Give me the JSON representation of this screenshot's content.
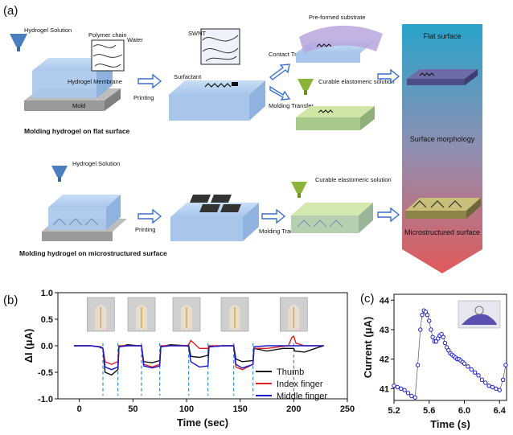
{
  "panel_a": {
    "label": "(a)",
    "row1": {
      "hydrogel_solution": "Hydrogel Solution",
      "polymer_chain": "Polymer chain",
      "water": "Water",
      "hydrogel_membrane": "Hydrogel Membrane",
      "mold": "Mold",
      "printing": "Printing",
      "swnt": "SWNT",
      "surfactant": "Surfactant",
      "preformed_substrate": "Pre-formed substrate",
      "contact_transfer": "Contact Transfer",
      "molding_transfer": "Molding Transfer",
      "curable_solution": "Curable elastomeric solution",
      "caption": "Molding hydrogel on flat surface"
    },
    "row2": {
      "hydrogel_solution": "Hydrogel Solution",
      "printing": "Printing",
      "molding_transfer": "Molding Transfer",
      "curable_solution": "Curable elastomeric solution",
      "caption": "Molding hydrogel on microstructured surface"
    },
    "gradient_bar": {
      "top": "Flat surface",
      "middle": "Surface morphology",
      "bottom": "Microstructured surface",
      "top_color": "#29a3c9",
      "bottom_color": "#e05a5a"
    }
  },
  "panel_b": {
    "label": "(b)",
    "photo_icons": [
      "hand-photo-thumb-icon",
      "hand-photo-index-icon",
      "hand-photo-middle-icon",
      "hand-photo-two-icon",
      "hand-photo-three-icon"
    ],
    "chart_data": {
      "type": "line",
      "title": "",
      "xlabel": "Time (sec)",
      "ylabel": "ΔI (μA)",
      "xlim": [
        -20,
        250
      ],
      "ylim": [
        -1.0,
        1.0
      ],
      "xticks": [
        "0",
        "50",
        "100",
        "150",
        "200",
        "250"
      ],
      "yticks": [
        "-1.0",
        "-0.5",
        "0.0",
        "0.5",
        "1.0"
      ],
      "legend_position": "bottom-right",
      "event_marks_sec": [
        22,
        36,
        58,
        75,
        102,
        120,
        144,
        162,
        200
      ],
      "series": [
        {
          "name": "Thumb",
          "color": "#111111",
          "x": [
            -5,
            10,
            18,
            22,
            24,
            30,
            36,
            37,
            45,
            55,
            58,
            60,
            68,
            75,
            76,
            85,
            100,
            102,
            104,
            112,
            120,
            121,
            135,
            144,
            146,
            152,
            162,
            163,
            175,
            190,
            200,
            201,
            210,
            220,
            228
          ],
          "y": [
            0,
            0,
            -0.02,
            -0.05,
            -0.5,
            -0.55,
            -0.45,
            -0.02,
            0.02,
            0,
            0,
            -0.3,
            -0.32,
            -0.28,
            -0.02,
            0.02,
            0,
            0,
            -0.2,
            -0.22,
            -0.18,
            -0.02,
            0,
            0,
            -0.25,
            -0.3,
            -0.28,
            -0.05,
            -0.1,
            -0.05,
            -0.05,
            -0.1,
            -0.12,
            -0.05,
            0
          ]
        },
        {
          "name": "Index finger",
          "color": "#e02020",
          "x": [
            -5,
            10,
            20,
            22,
            24,
            30,
            36,
            37,
            45,
            55,
            58,
            60,
            68,
            75,
            76,
            85,
            100,
            102,
            104,
            112,
            120,
            121,
            135,
            144,
            146,
            152,
            162,
            163,
            175,
            195,
            198,
            200,
            202,
            210,
            228
          ],
          "y": [
            0,
            0,
            -0.02,
            -0.05,
            -0.3,
            -0.35,
            -0.3,
            0,
            0,
            0,
            0,
            -0.35,
            -0.4,
            -0.35,
            0,
            0,
            0,
            0.02,
            0.1,
            -0.05,
            -0.05,
            0,
            0,
            0,
            -0.4,
            -0.45,
            -0.35,
            -0.05,
            -0.05,
            0,
            0.15,
            0.18,
            0.05,
            0,
            0
          ]
        },
        {
          "name": "Middle finger",
          "color": "#1a1acc",
          "x": [
            -5,
            10,
            20,
            22,
            24,
            30,
            36,
            37,
            45,
            55,
            58,
            60,
            68,
            75,
            76,
            85,
            100,
            102,
            104,
            112,
            120,
            121,
            135,
            144,
            146,
            152,
            162,
            163,
            175,
            195,
            200,
            210,
            228
          ],
          "y": [
            0,
            0,
            -0.02,
            -0.05,
            -0.4,
            -0.45,
            -0.4,
            -0.02,
            0,
            0,
            0,
            -0.38,
            -0.42,
            -0.38,
            -0.02,
            0,
            0,
            -0.02,
            -0.3,
            -0.4,
            -0.38,
            -0.02,
            0,
            0,
            -0.35,
            -0.42,
            -0.35,
            -0.02,
            0,
            0,
            0,
            0,
            0
          ]
        }
      ]
    }
  },
  "panel_c": {
    "label": "(c)",
    "photo_icon": "gloved-hand-sensor-icon",
    "chart_data": {
      "type": "scatter",
      "title": "",
      "xlabel": "Time (s)",
      "ylabel": "Current (μA)",
      "xlim": [
        5.2,
        6.48
      ],
      "ylim": [
        40.6,
        44.2
      ],
      "xticks": [
        "5.2",
        "5.6",
        "6.0",
        "6.4"
      ],
      "yticks": [
        "41",
        "42",
        "43",
        "44"
      ],
      "series": [
        {
          "name": "Current",
          "color": "#1a1acc",
          "x": [
            5.2,
            5.24,
            5.28,
            5.32,
            5.36,
            5.4,
            5.44,
            5.47,
            5.5,
            5.52,
            5.54,
            5.56,
            5.58,
            5.6,
            5.62,
            5.64,
            5.66,
            5.68,
            5.7,
            5.72,
            5.74,
            5.76,
            5.78,
            5.8,
            5.82,
            5.84,
            5.86,
            5.88,
            5.9,
            5.92,
            5.94,
            5.96,
            5.98,
            6.0,
            6.04,
            6.08,
            6.12,
            6.16,
            6.2,
            6.24,
            6.28,
            6.32,
            6.36,
            6.4,
            6.44,
            6.47
          ],
          "y": [
            41.1,
            41.05,
            41.0,
            40.95,
            40.85,
            40.75,
            40.7,
            41.8,
            43.0,
            43.5,
            43.65,
            43.6,
            43.5,
            43.3,
            43.0,
            42.75,
            42.6,
            42.6,
            42.7,
            42.8,
            42.85,
            42.75,
            42.55,
            42.4,
            42.3,
            42.2,
            42.15,
            42.1,
            42.05,
            42.0,
            42.0,
            41.95,
            41.9,
            41.85,
            41.75,
            41.65,
            41.55,
            41.45,
            41.3,
            41.2,
            41.1,
            41.05,
            41.0,
            40.95,
            41.3,
            41.8
          ]
        }
      ]
    }
  }
}
